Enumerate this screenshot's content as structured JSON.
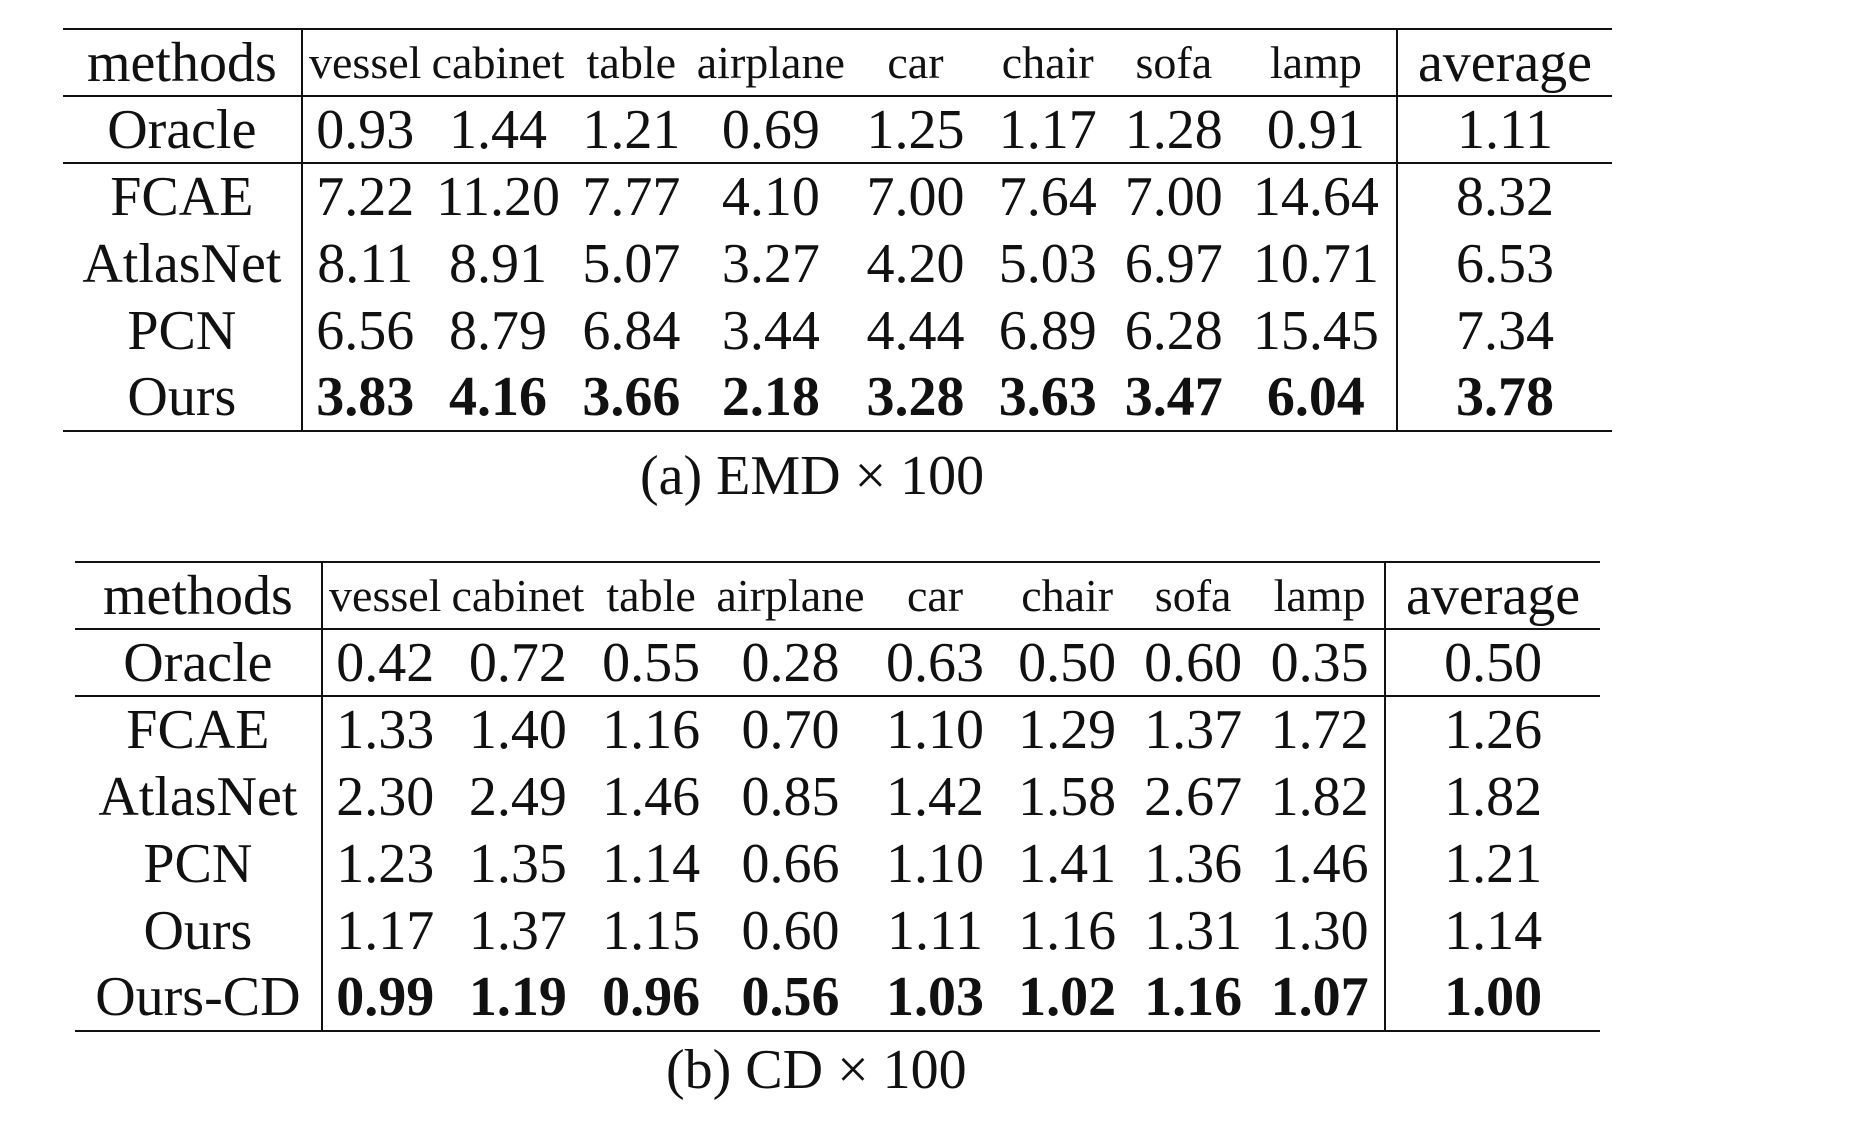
{
  "tables": [
    {
      "columns": [
        "methods",
        "vessel",
        "cabinet",
        "table",
        "airplane",
        "car",
        "chair",
        "sofa",
        "lamp",
        "average"
      ],
      "oracle": {
        "method": "Oracle",
        "values": [
          "0.93",
          "1.44",
          "1.21",
          "0.69",
          "1.25",
          "1.17",
          "1.28",
          "0.91",
          "1.11"
        ]
      },
      "rows": [
        {
          "method": "FCAE",
          "values": [
            "7.22",
            "11.20",
            "7.77",
            "4.10",
            "7.00",
            "7.64",
            "7.00",
            "14.64",
            "8.32"
          ]
        },
        {
          "method": "AtlasNet",
          "values": [
            "8.11",
            "8.91",
            "5.07",
            "3.27",
            "4.20",
            "5.03",
            "6.97",
            "10.71",
            "6.53"
          ]
        },
        {
          "method": "PCN",
          "values": [
            "6.56",
            "8.79",
            "6.84",
            "3.44",
            "4.44",
            "6.89",
            "6.28",
            "15.45",
            "7.34"
          ]
        },
        {
          "method": "Ours",
          "values": [
            "3.83",
            "4.16",
            "3.66",
            "2.18",
            "3.28",
            "3.63",
            "3.47",
            "6.04",
            "3.78"
          ],
          "bold": true
        }
      ],
      "caption": "(a) EMD × 100"
    },
    {
      "columns": [
        "methods",
        "vessel",
        "cabinet",
        "table",
        "airplane",
        "car",
        "chair",
        "sofa",
        "lamp",
        "average"
      ],
      "oracle": {
        "method": "Oracle",
        "values": [
          "0.42",
          "0.72",
          "0.55",
          "0.28",
          "0.63",
          "0.50",
          "0.60",
          "0.35",
          "0.50"
        ]
      },
      "rows": [
        {
          "method": "FCAE",
          "values": [
            "1.33",
            "1.40",
            "1.16",
            "0.70",
            "1.10",
            "1.29",
            "1.37",
            "1.72",
            "1.26"
          ]
        },
        {
          "method": "AtlasNet",
          "values": [
            "2.30",
            "2.49",
            "1.46",
            "0.85",
            "1.42",
            "1.58",
            "2.67",
            "1.82",
            "1.82"
          ]
        },
        {
          "method": "PCN",
          "values": [
            "1.23",
            "1.35",
            "1.14",
            "0.66",
            "1.10",
            "1.41",
            "1.36",
            "1.46",
            "1.21"
          ]
        },
        {
          "method": "Ours",
          "values": [
            "1.17",
            "1.37",
            "1.15",
            "0.60",
            "1.11",
            "1.16",
            "1.31",
            "1.30",
            "1.14"
          ]
        },
        {
          "method": "Ours-CD",
          "values": [
            "0.99",
            "1.19",
            "0.96",
            "0.56",
            "1.03",
            "1.02",
            "1.16",
            "1.07",
            "1.00"
          ],
          "bold": true
        }
      ],
      "caption": "(b) CD × 100"
    }
  ]
}
